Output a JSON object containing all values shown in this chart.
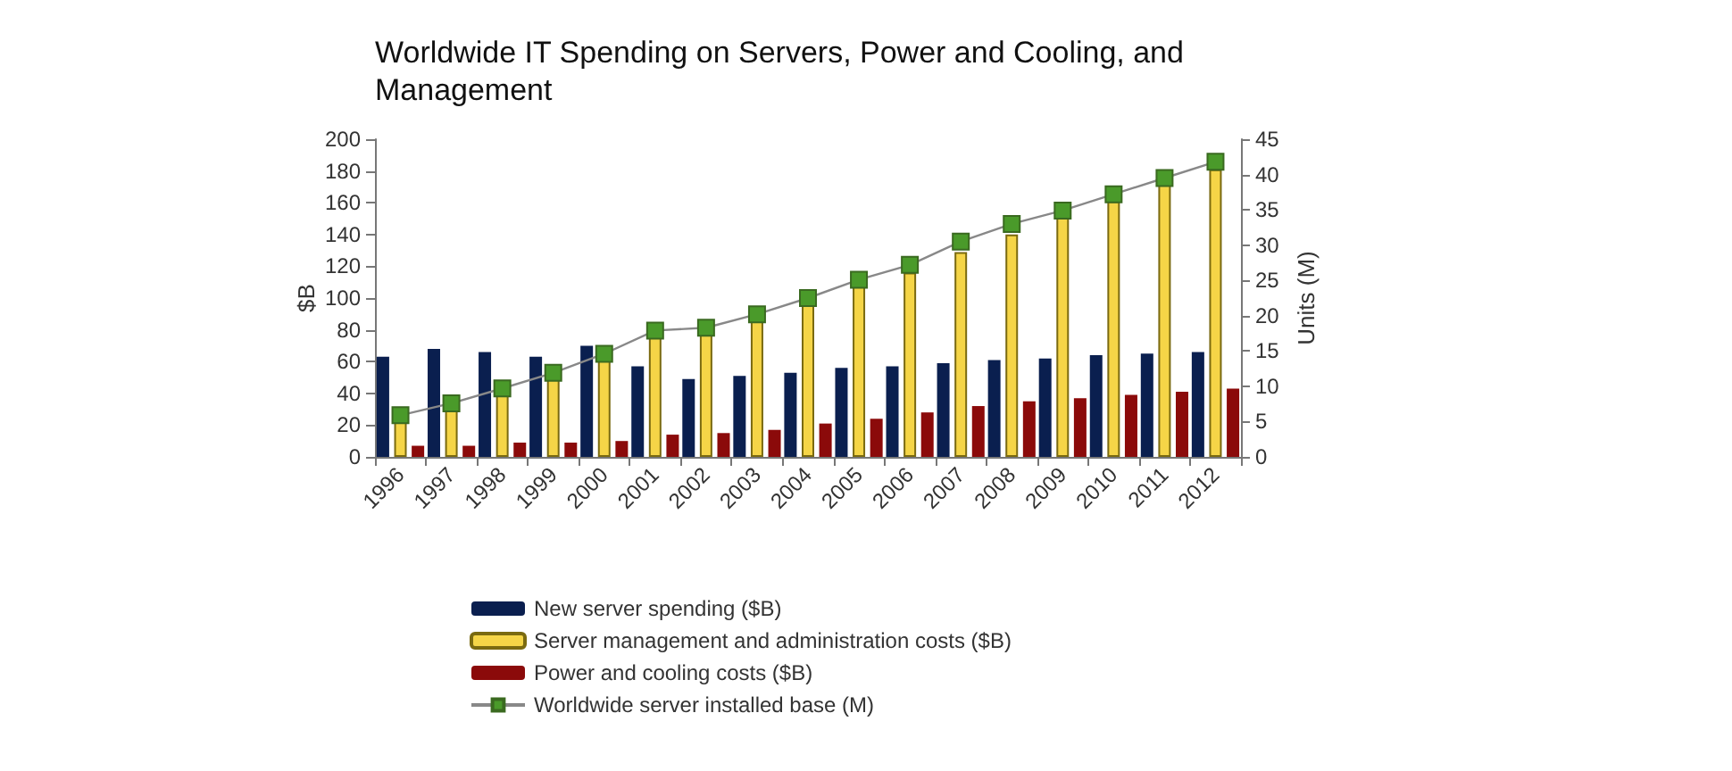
{
  "chart_data": {
    "type": "bar",
    "title": "Worldwide IT Spending on Servers, Power and Cooling, and Management",
    "ylabel": "$B",
    "y2label": "Units (M)",
    "categories": [
      "1996",
      "1997",
      "1998",
      "1999",
      "2000",
      "2001",
      "2002",
      "2003",
      "2004",
      "2005",
      "2006",
      "2007",
      "2008",
      "2009",
      "2010",
      "2011",
      "2012"
    ],
    "series": [
      {
        "name": "New server spending ($B)",
        "color": "#0a1f4f",
        "values": [
          63,
          68,
          66,
          63,
          70,
          57,
          49,
          51,
          53,
          56,
          57,
          59,
          61,
          62,
          64,
          65,
          66
        ]
      },
      {
        "name": "Server management and administration costs ($B)",
        "color": "#f5d547",
        "values": [
          22,
          30,
          39,
          50,
          62,
          78,
          78,
          86,
          97,
          108,
          116,
          129,
          140,
          151,
          161,
          172,
          181
        ]
      },
      {
        "name": "Power and cooling costs ($B)",
        "color": "#8b0a0a",
        "values": [
          7,
          7,
          9,
          9,
          10,
          14,
          15,
          17,
          21,
          24,
          28,
          32,
          35,
          37,
          39,
          41,
          43
        ]
      },
      {
        "name": "Worldwide server installed base (M)",
        "type": "line",
        "axis": "y2",
        "color": "#4a9a2a",
        "marker": "square",
        "values": [
          5.9,
          7.6,
          9.7,
          11.9,
          14.6,
          17.9,
          18.3,
          20.2,
          22.5,
          25.1,
          27.2,
          30.5,
          33,
          34.9,
          37.2,
          39.5,
          41.8
        ]
      }
    ],
    "ylim": [
      0,
      200
    ],
    "yticks": [
      0,
      20,
      40,
      60,
      80,
      100,
      120,
      140,
      160,
      180,
      200
    ],
    "y2lim": [
      0,
      45
    ],
    "y2ticks": [
      0,
      5,
      10,
      15,
      20,
      25,
      30,
      35,
      40,
      45
    ],
    "grid": false,
    "legend": "bottom"
  }
}
